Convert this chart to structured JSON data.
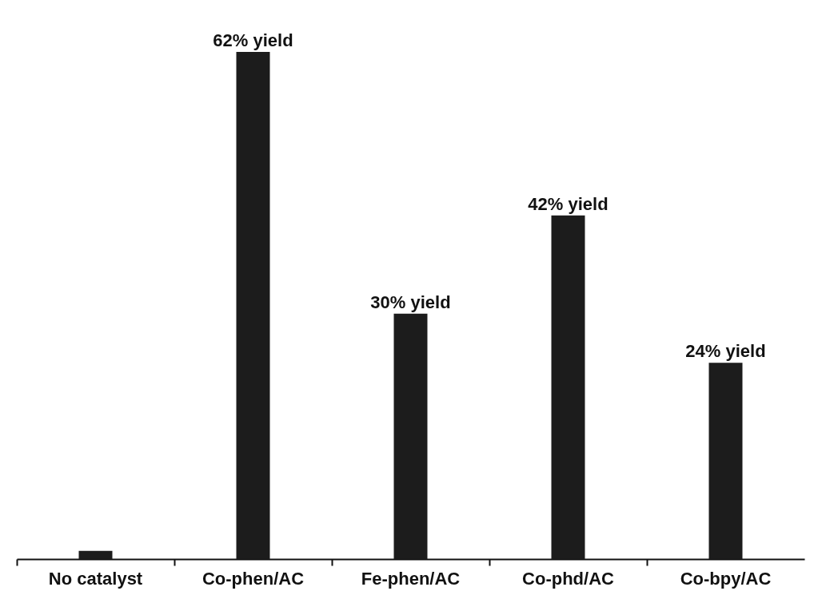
{
  "chart_data": {
    "type": "bar",
    "categories": [
      "No catalyst",
      "Co-phen/AC",
      "Fe-phen/AC",
      "Co-phd/AC",
      "Co-bpy/AC"
    ],
    "values": [
      1,
      62,
      30,
      42,
      24
    ],
    "value_labels": [
      null,
      "62% yield",
      "30% yield",
      "42% yield",
      "24% yield"
    ],
    "color": "#1c1c1c"
  }
}
